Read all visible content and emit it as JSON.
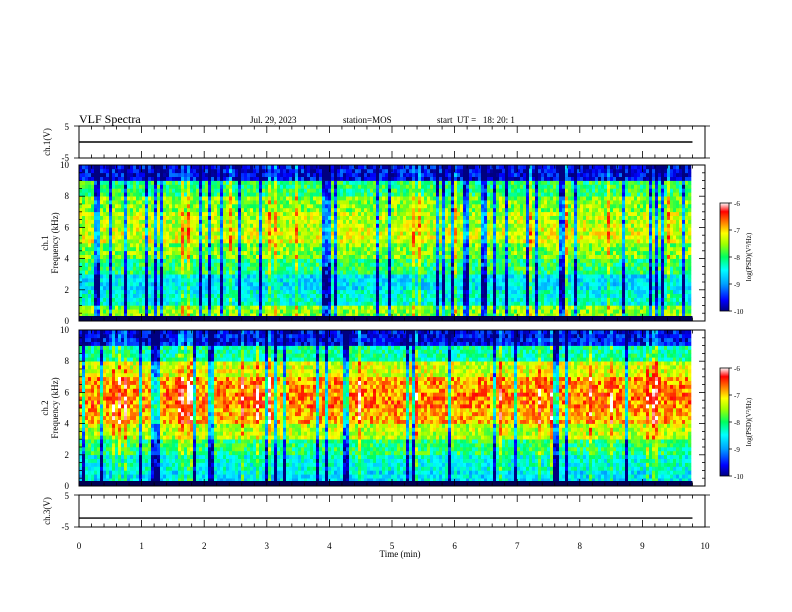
{
  "header": {
    "title": "VLF Spectra",
    "date": "Jul. 29, 2023",
    "station": "station=MOS",
    "start": "start  UT =   18: 20: 1"
  },
  "colors": {
    "colormap": [
      "#000080",
      "#0000ff",
      "#00a0ff",
      "#00ffff",
      "#00ff60",
      "#a0ff00",
      "#ffff00",
      "#ff8000",
      "#ff0000",
      "#ffffff"
    ],
    "axis": "#000000",
    "trace": "#000000"
  },
  "chart_data": [
    {
      "id": "ch1-voltage",
      "type": "line",
      "ylabel": "ch.1(V)",
      "ylim": [
        -5,
        5
      ],
      "yticks": [
        "5",
        "-5"
      ],
      "x": [
        0,
        9.8
      ],
      "y": [
        0,
        0
      ]
    },
    {
      "id": "ch1-spectrogram",
      "type": "heatmap",
      "ylabel_top": "ch.1",
      "ylabel": "Frequency (kHz)",
      "ylim": [
        0,
        10
      ],
      "yticks": [
        "0",
        "2",
        "4",
        "6",
        "8",
        "10"
      ],
      "xlim": [
        0,
        10
      ],
      "data_extent_x": 9.8,
      "band_rows_khz": [
        0.5,
        1.5,
        2.5,
        3.5,
        4.5,
        5.5,
        6.5,
        7.5,
        8.5,
        9.5
      ],
      "typical_log_psd": [
        -7.6,
        -8.4,
        -8.6,
        -8.0,
        -7.6,
        -7.3,
        -7.4,
        -7.6,
        -8.0,
        -9.6
      ],
      "colorbar": {
        "label": "log(PSD)(V²/Hz)",
        "range": [
          -10,
          -6
        ],
        "ticks": [
          "-6",
          "-7",
          "-8",
          "-9",
          "-10"
        ]
      }
    },
    {
      "id": "ch2-spectrogram",
      "type": "heatmap",
      "ylabel_top": "ch.2",
      "ylabel": "Frequency (kHz)",
      "ylim": [
        0,
        10
      ],
      "yticks": [
        "0",
        "2",
        "4",
        "6",
        "8",
        "10"
      ],
      "xlim": [
        0,
        10
      ],
      "data_extent_x": 9.8,
      "band_rows_khz": [
        0.5,
        1.5,
        2.5,
        3.5,
        4.5,
        5.5,
        6.5,
        7.5,
        8.5,
        9.5
      ],
      "typical_log_psd": [
        -8.6,
        -8.4,
        -8.0,
        -7.4,
        -6.9,
        -6.7,
        -6.8,
        -7.3,
        -8.2,
        -9.6
      ],
      "colorbar": {
        "label": "log(PSD)(V²/Hz)",
        "range": [
          -10,
          -6
        ],
        "ticks": [
          "-6",
          "-7",
          "-8",
          "-9",
          "-10"
        ]
      }
    },
    {
      "id": "ch3-voltage",
      "type": "line",
      "ylabel": "ch.3(V)",
      "ylim": [
        -5,
        5
      ],
      "yticks": [
        "5",
        "-5"
      ],
      "x": [
        0,
        9.8
      ],
      "y": [
        -2.2,
        -2.2
      ]
    }
  ],
  "xaxis": {
    "label": "Time (min)",
    "ticks": [
      "0",
      "1",
      "2",
      "3",
      "4",
      "5",
      "6",
      "7",
      "8",
      "9",
      "10"
    ],
    "range": [
      0,
      10
    ]
  }
}
